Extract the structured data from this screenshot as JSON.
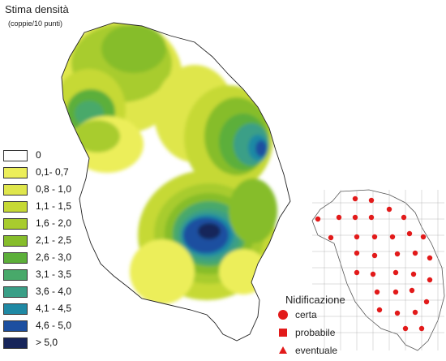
{
  "title": "Stima densità",
  "subtitle": "(coppie/10 punti)",
  "legend": {
    "classes": [
      {
        "label": "0",
        "color": "#ffffff"
      },
      {
        "label": "0,1- 0,7",
        "color": "#ecee5a"
      },
      {
        "label": "0,8 - 1,0",
        "color": "#dfe64c"
      },
      {
        "label": "1,1 - 1,5",
        "color": "#c6d935"
      },
      {
        "label": "1,6 - 2,0",
        "color": "#a8cc2e"
      },
      {
        "label": "2,1 - 2,5",
        "color": "#86bd2b"
      },
      {
        "label": "2,6 - 3,0",
        "color": "#5caf3a"
      },
      {
        "label": "3,1 - 3,5",
        "color": "#48a96a"
      },
      {
        "label": "3,6 - 4,0",
        "color": "#3a9f87"
      },
      {
        "label": "4,1 - 4,5",
        "color": "#1f89a4"
      },
      {
        "label": "4,6 - 5,0",
        "color": "#1c4fa0"
      },
      {
        "label": "> 5,0",
        "color": "#17255a"
      }
    ]
  },
  "nidificazione": {
    "title": "Nidificazione",
    "items": [
      {
        "label": "certa",
        "symbol": "circle",
        "color": "#e21a1a"
      },
      {
        "label": "probabile",
        "symbol": "square",
        "color": "#e21a1a"
      },
      {
        "label": "eventuale",
        "symbol": "triangle",
        "color": "#e21a1a"
      }
    ]
  }
}
